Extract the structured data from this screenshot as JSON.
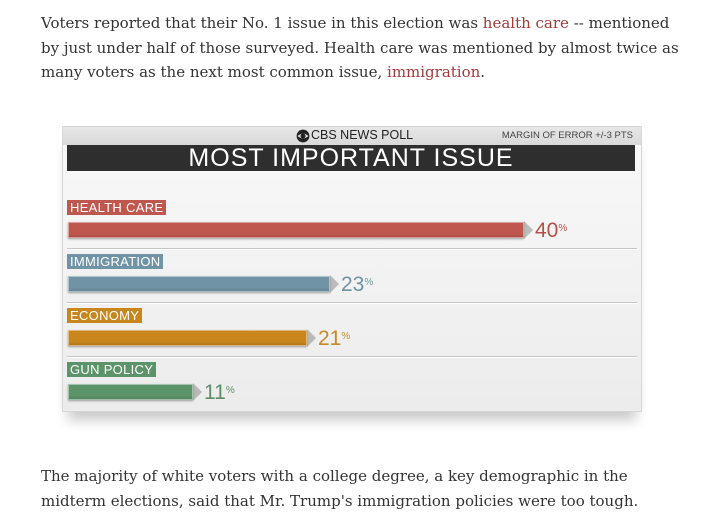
{
  "intro": {
    "text_before": "Voters reported that their No. 1 issue in this election was ",
    "link1": "health care",
    "text_middle": " -- mentioned by just under half of those surveyed. Health care was mentioned by almost twice as many voters as the next most common issue, ",
    "link2": "immigration",
    "text_after": "."
  },
  "graphic": {
    "source": "CBS NEWS POLL",
    "margin": "MARGIN OF ERROR +/-3 PTS",
    "title": "MOST IMPORTANT ISSUE",
    "percent_sign": "%"
  },
  "chart_data": {
    "type": "bar",
    "title": "MOST IMPORTANT ISSUE",
    "categories": [
      "HEALTH CARE",
      "IMMIGRATION",
      "ECONOMY",
      "GUN POLICY"
    ],
    "values": [
      40,
      23,
      21,
      11
    ],
    "unit": "%",
    "colors": [
      "#c0574f",
      "#7094a6",
      "#c8861d",
      "#5c9469"
    ],
    "value_colors": [
      "#b35048",
      "#6f93a4",
      "#c58a28",
      "#5d8e68"
    ]
  },
  "outro": {
    "text": "The majority of white voters with a college degree, a key demographic in the midterm elections, said that Mr. Trump's immigration policies were too tough."
  }
}
